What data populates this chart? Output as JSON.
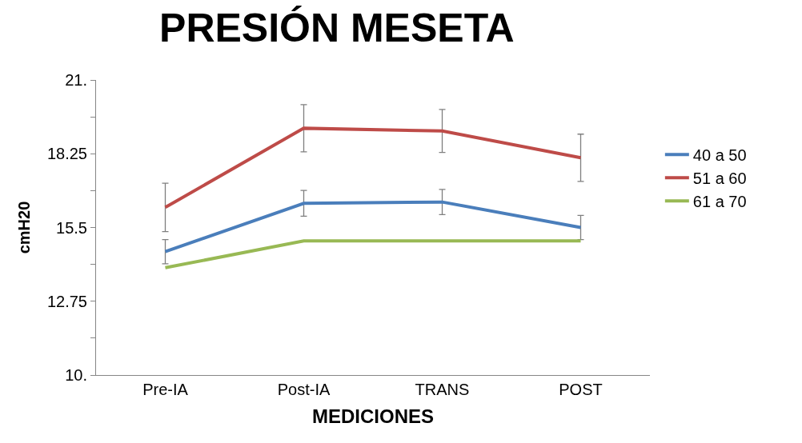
{
  "chart_data": {
    "type": "line",
    "title": "PRESIÓN MESETA",
    "xlabel": "MEDICIONES",
    "ylabel": "cmH20",
    "categories": [
      "Pre-IA",
      "Post-IA",
      "TRANS",
      "POST"
    ],
    "series": [
      {
        "name": "40 a 50",
        "color": "#4a7ebb",
        "values": [
          14.6,
          16.4,
          16.45,
          15.5
        ],
        "errors": [
          0.45,
          0.48,
          0.47,
          0.45
        ]
      },
      {
        "name": "51 a 60",
        "color": "#be4b48",
        "values": [
          16.25,
          19.2,
          19.1,
          18.1
        ],
        "errors": [
          0.9,
          0.88,
          0.8,
          0.88
        ]
      },
      {
        "name": "61 a 70",
        "color": "#98b954",
        "values": [
          14.0,
          15.0,
          15.0,
          15.0
        ]
      }
    ],
    "ylim": [
      10,
      21
    ],
    "yticks": [
      {
        "value": 10,
        "label": "10."
      },
      {
        "value": 11.375,
        "label": null
      },
      {
        "value": 12.75,
        "label": "12.75"
      },
      {
        "value": 14.125,
        "label": null
      },
      {
        "value": 15.5,
        "label": "15.5"
      },
      {
        "value": 16.875,
        "label": null
      },
      {
        "value": 18.25,
        "label": "18.25"
      },
      {
        "value": 19.625,
        "label": null
      },
      {
        "value": 21,
        "label": "21."
      }
    ],
    "legend": "right",
    "marker": "none",
    "line_style": "solid"
  }
}
